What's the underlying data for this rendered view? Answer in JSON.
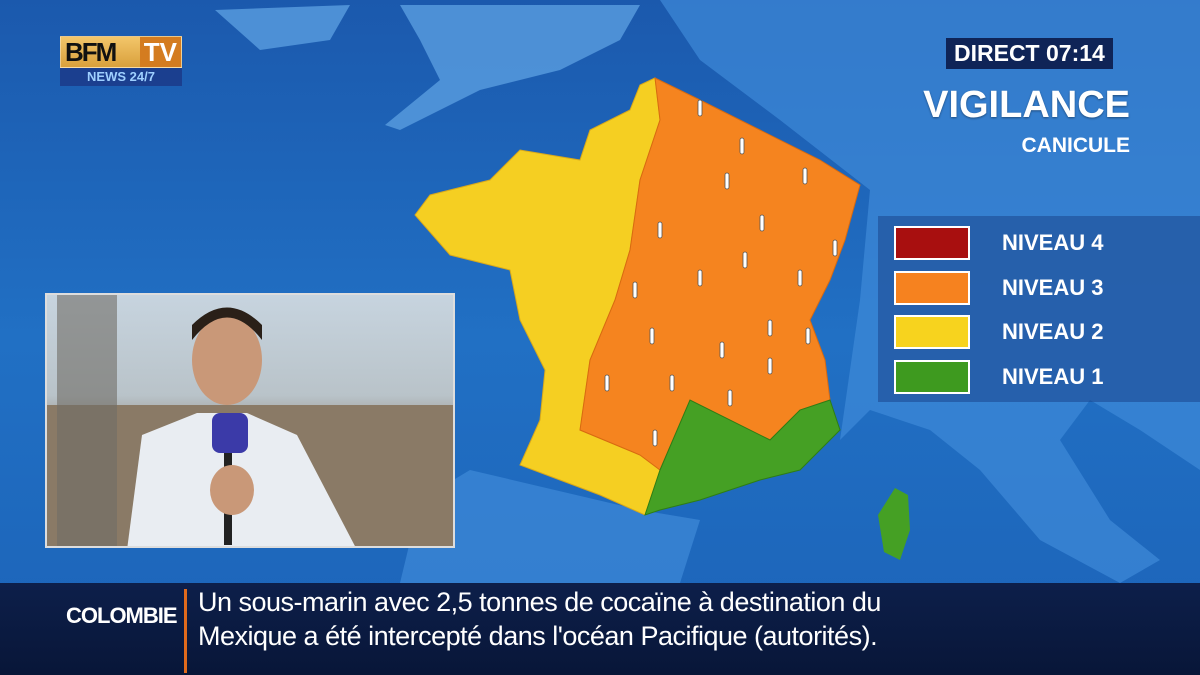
{
  "channel": {
    "logo_text": "BFMTV",
    "logo_sub": "NEWS 24/7"
  },
  "direct": {
    "label": "DIRECT",
    "time": "07:14"
  },
  "title": "VIGILANCE",
  "subtitle": "CANICULE",
  "legend": [
    {
      "label": "NIVEAU 4",
      "color": "#a80f0f"
    },
    {
      "label": "NIVEAU 3",
      "color": "#f6821f"
    },
    {
      "label": "NIVEAU 2",
      "color": "#f7d31e"
    },
    {
      "label": "NIVEAU 1",
      "color": "#3e9a1f"
    }
  ],
  "map_icon": "thermometer-icon",
  "ticker": {
    "category": "COLOMBIE",
    "line1": "Un sous-marin avec 2,5 tonnes de cocaïne à destination du",
    "line2": "Mexique a été intercepté dans l'océan Pacifique (autorités)."
  }
}
